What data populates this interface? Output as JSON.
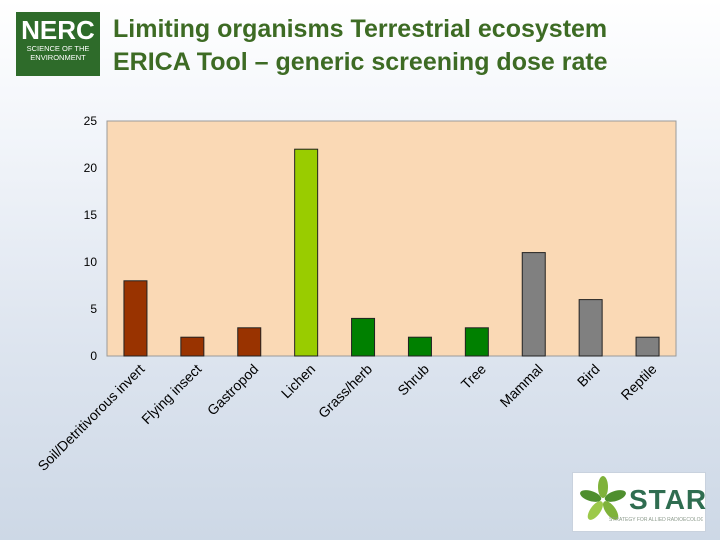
{
  "header": {
    "logo_text": "NERC",
    "logo_sub_1": "SCIENCE OF THE",
    "logo_sub_2": "ENVIRONMENT",
    "title_line_1": "Limiting organisms Terrestrial ecosystem",
    "title_line_2": "ERICA Tool – generic screening dose rate"
  },
  "star_logo": {
    "word": "STAR",
    "tagline": "STRATEGY FOR ALLIED RADIOECOLOGY"
  },
  "chart_data": {
    "type": "bar",
    "title": "",
    "xlabel": "",
    "ylabel": "",
    "ylim": [
      0,
      25
    ],
    "yticks": [
      0,
      5,
      10,
      15,
      20,
      25
    ],
    "grid": false,
    "categories": [
      "Soil/Detritivorous invert",
      "Flying insect",
      "Gastropod",
      "Lichen",
      "Grass/herb",
      "Shrub",
      "Tree",
      "Mammal",
      "Bird",
      "Reptile"
    ],
    "values": [
      8,
      2,
      3,
      22,
      4,
      2,
      3,
      11,
      6,
      2
    ],
    "colors": [
      "#993300",
      "#993300",
      "#993300",
      "#99cc00",
      "#008000",
      "#008000",
      "#008000",
      "#808080",
      "#808080",
      "#808080"
    ],
    "plot_background": "#fad9b5"
  }
}
